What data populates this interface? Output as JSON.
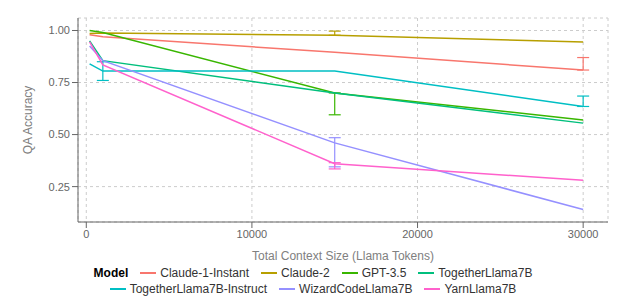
{
  "chart_data": {
    "type": "line",
    "xlabel": "Total Context Size (Llama Tokens)",
    "ylabel": "QA Accuracy",
    "legend_title": "Model",
    "x": [
      200,
      1000,
      15000,
      30000
    ],
    "xlim": [
      -500,
      31500
    ],
    "ylim": [
      0.08,
      1.06
    ],
    "xticks": [
      0,
      10000,
      20000,
      30000
    ],
    "yticks": [
      0.25,
      {
        "value": 0.5,
        "label": "0.50"
      },
      {
        "value": 0.75,
        "label": "0.75"
      },
      {
        "value": 1.0,
        "label": "1.00"
      }
    ],
    "grid": true,
    "legend": "bottom",
    "series": [
      {
        "name": "Claude-1-Instant",
        "color": "#F8766D",
        "values": [
          0.98,
          0.97,
          0.895,
          0.81
        ],
        "error_low": [
          0.0,
          0.0,
          0.0,
          0.0
        ],
        "error_high": [
          0.0,
          0.0,
          0.0,
          0.06
        ]
      },
      {
        "name": "Claude-2",
        "color": "#B79F00",
        "values": [
          0.985,
          0.988,
          0.977,
          0.945
        ],
        "error_low": [
          0.0,
          0.0,
          0.0,
          0.0
        ],
        "error_high": [
          0.0,
          0.0,
          0.02,
          0.0
        ]
      },
      {
        "name": "GPT-3.5",
        "color": "#39B600",
        "values": [
          1.0,
          0.99,
          0.7,
          0.57
        ],
        "error_low": [
          0.0,
          0.0,
          0.105,
          0.0
        ],
        "error_high": [
          0.0,
          0.0,
          0.0,
          0.0
        ]
      },
      {
        "name": "TogetherLlama7B",
        "color": "#00BF7D",
        "values": [
          0.95,
          0.855,
          0.7,
          0.555
        ],
        "error_low": [
          0.0,
          0.0,
          0.0,
          0.0
        ],
        "error_high": [
          0.0,
          0.0,
          0.0,
          0.0
        ]
      },
      {
        "name": "TogetherLlama7B-Instruct",
        "color": "#00BFC4",
        "values": [
          0.84,
          0.805,
          0.805,
          0.635
        ],
        "error_low": [
          0.0,
          0.045,
          0.0,
          0.0
        ],
        "error_high": [
          0.0,
          0.045,
          0.0,
          0.05
        ]
      },
      {
        "name": "WizardCodeLlama7B",
        "color": "#9590FF",
        "values": [
          0.925,
          0.855,
          0.46,
          0.14
        ],
        "error_low": [
          0.0,
          0.0,
          0.115,
          0.0
        ],
        "error_high": [
          0.0,
          0.0,
          0.025,
          0.0
        ]
      },
      {
        "name": "YarnLlama7B",
        "color": "#FF61CC",
        "values": [
          0.945,
          0.835,
          0.36,
          0.28
        ],
        "error_low": [
          0.0,
          0.0,
          0.025,
          0.0
        ],
        "error_high": [
          0.0,
          0.0,
          0.005,
          0.0
        ]
      }
    ]
  }
}
